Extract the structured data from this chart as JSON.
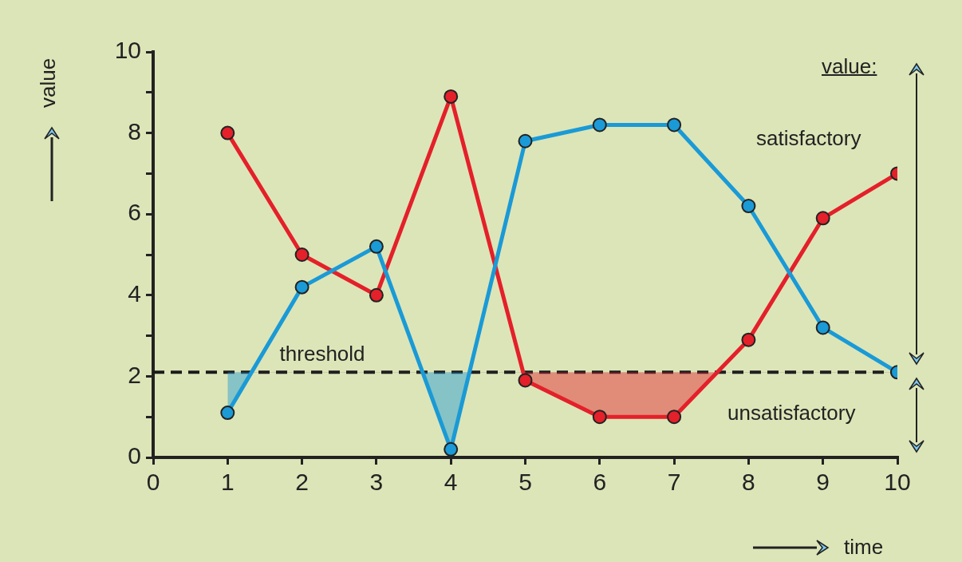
{
  "chart_data": {
    "type": "line",
    "xlabel": "time",
    "ylabel": "value",
    "x": [
      1,
      2,
      3,
      4,
      5,
      6,
      7,
      8,
      9,
      10
    ],
    "series": [
      {
        "color": "#1a9ad6",
        "values": [
          1.1,
          4.2,
          5.2,
          0.2,
          7.8,
          8.2,
          8.2,
          6.2,
          3.2,
          2.1
        ]
      },
      {
        "color": "#e4202a",
        "values": [
          8.0,
          5.0,
          4.0,
          8.9,
          1.9,
          1.0,
          1.0,
          2.9,
          5.9,
          7.0
        ]
      }
    ],
    "xlim": [
      0,
      10
    ],
    "xticks": [
      0,
      1,
      2,
      3,
      4,
      5,
      6,
      7,
      8,
      9,
      10
    ],
    "ylim": [
      0,
      10
    ],
    "yticks": [
      0,
      {
        "value": 1,
        "label": null
      },
      2,
      {
        "value": 3,
        "label": null
      },
      4,
      {
        "value": 5,
        "label": null
      },
      6,
      {
        "value": 7,
        "label": null
      },
      8,
      {
        "value": 9,
        "label": null
      },
      10
    ],
    "ref_lines": [
      {
        "axis": "y",
        "value": 2.1,
        "label": "threshold",
        "color": "#1a1a1a",
        "line_style": "dashed"
      }
    ],
    "annotations": [
      "value:",
      "satisfactory",
      "unsatisfactory"
    ],
    "grid": false,
    "legend": false,
    "marker": "circle",
    "line_style": "solid"
  }
}
